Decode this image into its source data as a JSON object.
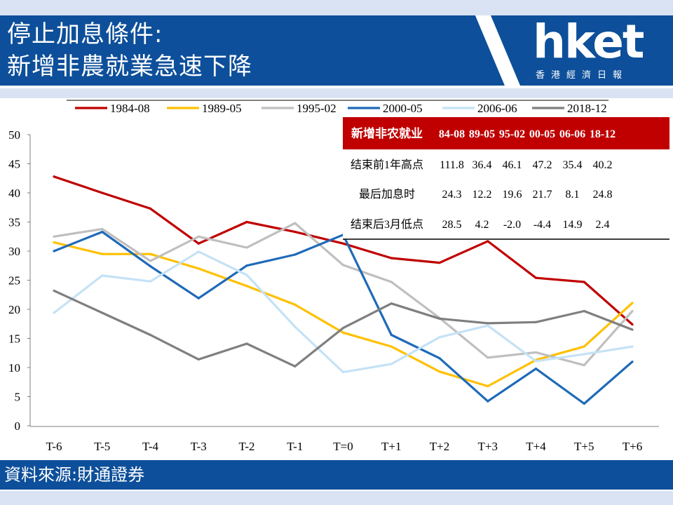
{
  "header": {
    "title_line1": "停止加息條件:",
    "title_line2": "新增非農就業急速下降",
    "logo": "hket",
    "logo_sub": "香港經濟日報"
  },
  "footer": {
    "source": "資料來源:財通證券"
  },
  "colors": {
    "header_blue": "#0d4f9a",
    "stripe": "#d9e3f3",
    "table_header": "#c00000"
  },
  "chart_data": {
    "type": "line",
    "categories": [
      "T-6",
      "T-5",
      "T-4",
      "T-3",
      "T-2",
      "T-1",
      "T=0",
      "T+1",
      "T+2",
      "T+3",
      "T+4",
      "T+5",
      "T+6"
    ],
    "ylim": [
      0,
      50
    ],
    "yticks": [
      0,
      5,
      10,
      15,
      20,
      25,
      30,
      35,
      40,
      45,
      50
    ],
    "grid": false,
    "legend_position": "top",
    "series": [
      {
        "name": "1984-08",
        "color": "#c00000",
        "values": [
          42.8,
          40.0,
          37.3,
          31.3,
          35.0,
          33.3,
          31.3,
          28.8,
          28.0,
          31.7,
          25.4,
          24.7,
          17.4
        ]
      },
      {
        "name": "1989-05",
        "color": "#ffc000",
        "values": [
          31.5,
          29.5,
          29.5,
          27.0,
          24.0,
          20.8,
          16.0,
          13.6,
          9.3,
          6.8,
          11.3,
          13.6,
          21.1
        ]
      },
      {
        "name": "1995-02",
        "color": "#bfbfbf",
        "values": [
          32.5,
          33.8,
          28.3,
          32.5,
          30.6,
          34.8,
          27.6,
          24.7,
          18.5,
          11.7,
          12.6,
          10.4,
          19.7
        ]
      },
      {
        "name": "2000-05",
        "color": "#1f6ab8",
        "values": [
          30.0,
          33.3,
          27.4,
          21.9,
          27.5,
          29.4,
          32.8,
          15.6,
          11.6,
          4.2,
          9.8,
          3.8,
          11.0
        ]
      },
      {
        "name": "2006-06",
        "color": "#c5e2f6",
        "values": [
          19.4,
          25.8,
          24.8,
          29.9,
          25.9,
          17.0,
          9.2,
          10.6,
          15.2,
          17.2,
          11.1,
          12.3,
          13.6
        ]
      },
      {
        "name": "2018-12",
        "color": "#7f7f7f",
        "values": [
          23.2,
          19.4,
          15.6,
          11.4,
          14.1,
          10.2,
          16.8,
          21.0,
          18.4,
          17.6,
          17.8,
          19.7,
          16.5
        ]
      }
    ],
    "table": {
      "header": [
        "新增非农就业",
        "84-08",
        "89-05",
        "95-02",
        "00-05",
        "06-06",
        "18-12"
      ],
      "rows": [
        [
          "结束前1年高点",
          "111.8",
          "36.4",
          "46.1",
          "47.2",
          "35.4",
          "40.2"
        ],
        [
          "最后加息时",
          "24.3",
          "12.2",
          "19.6",
          "21.7",
          "8.1",
          "24.8"
        ],
        [
          "结束后3月低点",
          "28.5",
          "4.2",
          "-2.0",
          "-4.4",
          "14.9",
          "2.4"
        ]
      ]
    }
  }
}
